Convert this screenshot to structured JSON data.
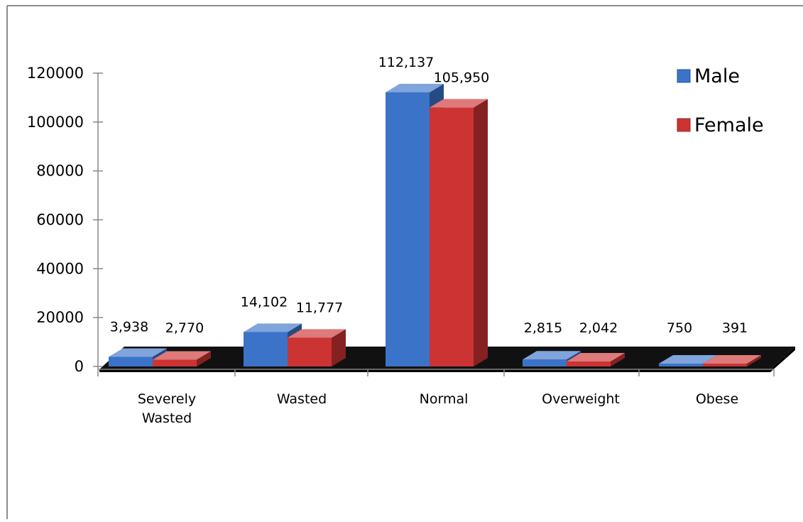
{
  "chart_data": {
    "type": "bar",
    "title": "",
    "xlabel": "",
    "ylabel": "",
    "categories": [
      "Severely Wasted",
      "Wasted",
      "Normal",
      "Overweight",
      "Obese"
    ],
    "category_lines": [
      [
        "Severely",
        "Wasted"
      ],
      [
        "Wasted"
      ],
      [
        "Normal"
      ],
      [
        "Overweight"
      ],
      [
        "Obese"
      ]
    ],
    "series": [
      {
        "name": "Male",
        "values": [
          3938,
          14102,
          112137,
          2815,
          750
        ],
        "labels": [
          "3,938",
          "14,102",
          "112,137",
          "2,815",
          "750"
        ],
        "color": "#3b73c9"
      },
      {
        "name": "Female",
        "values": [
          2770,
          11777,
          105950,
          2042,
          391
        ],
        "labels": [
          "2,770",
          "11,777",
          "105,950",
          "2,042",
          "391"
        ],
        "color": "#cc3333"
      }
    ],
    "y_ticks": [
      "0",
      "20000",
      "40000",
      "60000",
      "80000",
      "100000",
      "120000"
    ],
    "ylim": [
      0,
      120000
    ],
    "grid": false,
    "legend": "top-right",
    "style": "3d-clustered-column"
  }
}
